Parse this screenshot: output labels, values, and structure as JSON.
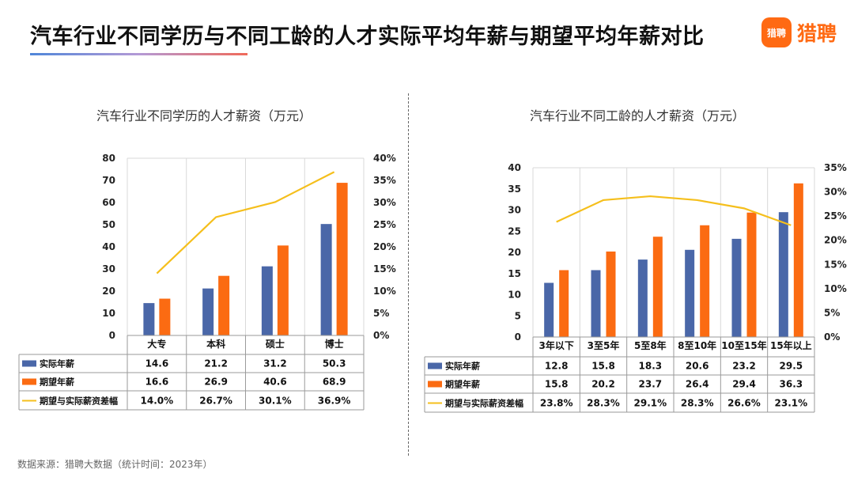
{
  "page": {
    "title": "汽车行业不同学历与不同工龄的人才实际平均年薪与期望平均年薪对比",
    "brand_logo_text": "猎聘",
    "brand_name": "猎聘",
    "source": "数据来源：猎聘大数据（统计时间：2023年）"
  },
  "colors": {
    "actual": "#4a67a8",
    "expected": "#fb6b12",
    "gap": "#f5bf1c",
    "grid": "#d9d9d9",
    "table_line": "#9a9a9a"
  },
  "chart_data": [
    {
      "type": "bar",
      "title": "汽车行业不同学历的人才薪资（万元）",
      "categories": [
        "大专",
        "本科",
        "硕士",
        "博士"
      ],
      "series": [
        {
          "name": "实际年薪",
          "values": [
            14.6,
            21.2,
            31.2,
            50.3
          ],
          "axis": "left"
        },
        {
          "name": "期望年薪",
          "values": [
            16.6,
            26.9,
            40.6,
            68.9
          ],
          "axis": "left"
        },
        {
          "name": "期望与实际薪资差幅",
          "type": "line",
          "values": [
            14.0,
            26.7,
            30.1,
            36.9
          ],
          "labels": [
            "14.0%",
            "26.7%",
            "30.1%",
            "36.9%"
          ],
          "axis": "right"
        }
      ],
      "ylim": [
        0,
        80
      ],
      "yticks": [
        "0",
        "10",
        "20",
        "30",
        "40",
        "50",
        "60",
        "70",
        "80"
      ],
      "y2lim": [
        0,
        40
      ],
      "y2ticks": [
        "0%",
        "5%",
        "10%",
        "15%",
        "20%",
        "25%",
        "30%",
        "35%",
        "40%"
      ],
      "grid": true,
      "legend": "data-table"
    },
    {
      "type": "bar",
      "title": "汽车行业不同工龄的人才薪资（万元）",
      "categories": [
        "3年以下",
        "3至5年",
        "5至8年",
        "8至10年",
        "10至15年",
        "15年以上"
      ],
      "series": [
        {
          "name": "实际年薪",
          "values": [
            12.8,
            15.8,
            18.3,
            20.6,
            23.2,
            29.5
          ],
          "axis": "left"
        },
        {
          "name": "期望年薪",
          "values": [
            15.8,
            20.2,
            23.7,
            26.4,
            29.4,
            36.3
          ],
          "axis": "left"
        },
        {
          "name": "期望与实际薪资差幅",
          "type": "line",
          "values": [
            23.8,
            28.3,
            29.1,
            28.3,
            26.6,
            23.1
          ],
          "labels": [
            "23.8%",
            "28.3%",
            "29.1%",
            "28.3%",
            "26.6%",
            "23.1%"
          ],
          "axis": "right"
        }
      ],
      "ylim": [
        0,
        40
      ],
      "yticks": [
        "0",
        "5",
        "10",
        "15",
        "20",
        "25",
        "30",
        "35",
        "40"
      ],
      "y2lim": [
        0,
        35
      ],
      "y2ticks": [
        "0%",
        "5%",
        "10%",
        "15%",
        "20%",
        "25%",
        "30%",
        "35%"
      ],
      "grid": true,
      "legend": "data-table"
    }
  ]
}
